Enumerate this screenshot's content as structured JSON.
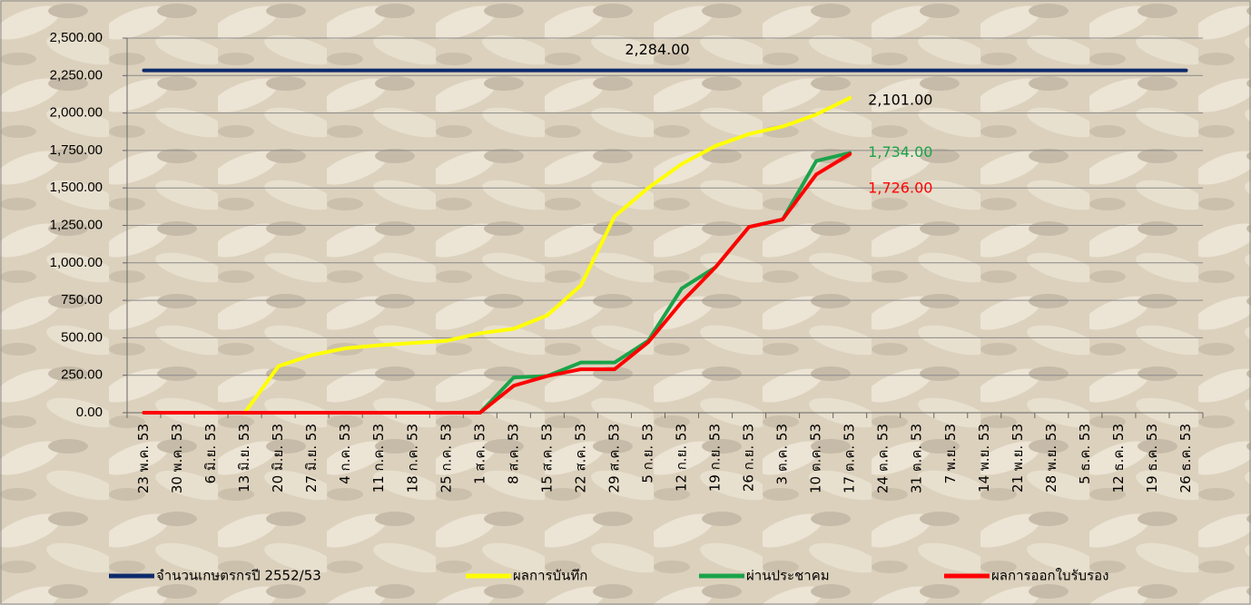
{
  "chart_data": {
    "type": "line",
    "categories": [
      "23 พ.ค. 53",
      "30 พ.ค. 53",
      "6 มิ.ย. 53",
      "13 มิ.ย. 53",
      "20 มิ.ย. 53",
      "27 มิ.ย. 53",
      "4 ก.ค. 53",
      "11 ก.ค. 53",
      "18 ก.ค. 53",
      "25 ก.ค. 53",
      "1 ส.ค. 53",
      "8 ส.ค. 53",
      "15 ส.ค. 53",
      "22 ส.ค. 53",
      "29 ส.ค. 53",
      "5 ก.ย. 53",
      "12 ก.ย. 53",
      "19 ก.ย. 53",
      "26 ก.ย. 53",
      "3 ต.ค. 53",
      "10 ต.ค. 53",
      "17 ต.ค. 53",
      "24 ต.ค. 53",
      "31 ต.ค. 53",
      "7 พ.ย. 53",
      "14 พ.ย. 53",
      "21 พ.ย. 53",
      "28 พ.ย. 53",
      "5 ธ.ค. 53",
      "12 ธ.ค. 53",
      "19 ธ.ค. 53",
      "26 ธ.ค. 53"
    ],
    "series": [
      {
        "name": "จำนวนเกษตรกรปี  2552/53",
        "color": "#0d2a6b",
        "label_color": "#000000",
        "values": [
          2284,
          2284,
          2284,
          2284,
          2284,
          2284,
          2284,
          2284,
          2284,
          2284,
          2284,
          2284,
          2284,
          2284,
          2284,
          2284,
          2284,
          2284,
          2284,
          2284,
          2284,
          2284,
          2284,
          2284,
          2284,
          2284,
          2284,
          2284,
          2284,
          2284,
          2284,
          2284
        ],
        "value_labels": [
          null,
          null,
          null,
          null,
          null,
          null,
          null,
          null,
          null,
          null,
          null,
          null,
          null,
          null,
          null,
          "2,284.00",
          null,
          null,
          null,
          null,
          null,
          null,
          null,
          null,
          null,
          null,
          null,
          null,
          null,
          null,
          null,
          null
        ]
      },
      {
        "name": "ผลการบันทึก",
        "color": "#ffff00",
        "label_color": "#000000",
        "values": [
          0,
          0,
          0,
          0,
          310,
          385,
          430,
          450,
          465,
          480,
          530,
          560,
          650,
          850,
          1310,
          1500,
          1660,
          1780,
          1860,
          1910,
          1990,
          2101,
          null,
          null,
          null,
          null,
          null,
          null,
          null,
          null,
          null,
          null
        ],
        "value_labels": [
          null,
          null,
          null,
          null,
          null,
          null,
          null,
          null,
          null,
          null,
          null,
          null,
          null,
          null,
          null,
          null,
          null,
          null,
          null,
          null,
          null,
          "2,101.00",
          null,
          null,
          null,
          null,
          null,
          null,
          null,
          null,
          null,
          null
        ]
      },
      {
        "name": "ผ่านประชาคม",
        "color": "#1aa34a",
        "label_color": "#1aa34a",
        "values": [
          0,
          0,
          0,
          0,
          0,
          0,
          0,
          0,
          0,
          0,
          0,
          235,
          245,
          335,
          335,
          480,
          830,
          970,
          1240,
          1290,
          1680,
          1734,
          null,
          null,
          null,
          null,
          null,
          null,
          null,
          null,
          null,
          null
        ],
        "value_labels": [
          null,
          null,
          null,
          null,
          null,
          null,
          null,
          null,
          null,
          null,
          null,
          null,
          null,
          null,
          null,
          null,
          null,
          null,
          null,
          null,
          null,
          "1,734.00",
          null,
          null,
          null,
          null,
          null,
          null,
          null,
          null,
          null,
          null
        ]
      },
      {
        "name": "ผลการออกใบรับรอง",
        "color": "#ff0000",
        "label_color": "#ff0000",
        "values": [
          0,
          0,
          0,
          0,
          0,
          0,
          0,
          0,
          0,
          0,
          0,
          180,
          245,
          290,
          290,
          470,
          740,
          970,
          1240,
          1290,
          1590,
          1726,
          null,
          null,
          null,
          null,
          null,
          null,
          null,
          null,
          null,
          null
        ],
        "value_labels": [
          null,
          null,
          null,
          null,
          null,
          null,
          null,
          null,
          null,
          null,
          null,
          null,
          null,
          null,
          null,
          null,
          null,
          null,
          null,
          null,
          null,
          "1,726.00",
          null,
          null,
          null,
          null,
          null,
          null,
          null,
          null,
          null,
          null
        ]
      }
    ],
    "ylim": [
      0,
      2500
    ],
    "yticks": [
      {
        "value": 0,
        "label": "0.00"
      },
      {
        "value": 250,
        "label": "250.00"
      },
      {
        "value": 500,
        "label": "500.00"
      },
      {
        "value": 750,
        "label": "750.00"
      },
      {
        "value": 1000,
        "label": "1,000.00"
      },
      {
        "value": 1250,
        "label": "1,250.00"
      },
      {
        "value": 1500,
        "label": "1,500.00"
      },
      {
        "value": 1750,
        "label": "1,750.00"
      },
      {
        "value": 2000,
        "label": "2,000.00"
      },
      {
        "value": 2250,
        "label": "2,250.00"
      },
      {
        "value": 2500,
        "label": "2,500.00"
      }
    ],
    "grid": true,
    "legend": "bottom"
  }
}
